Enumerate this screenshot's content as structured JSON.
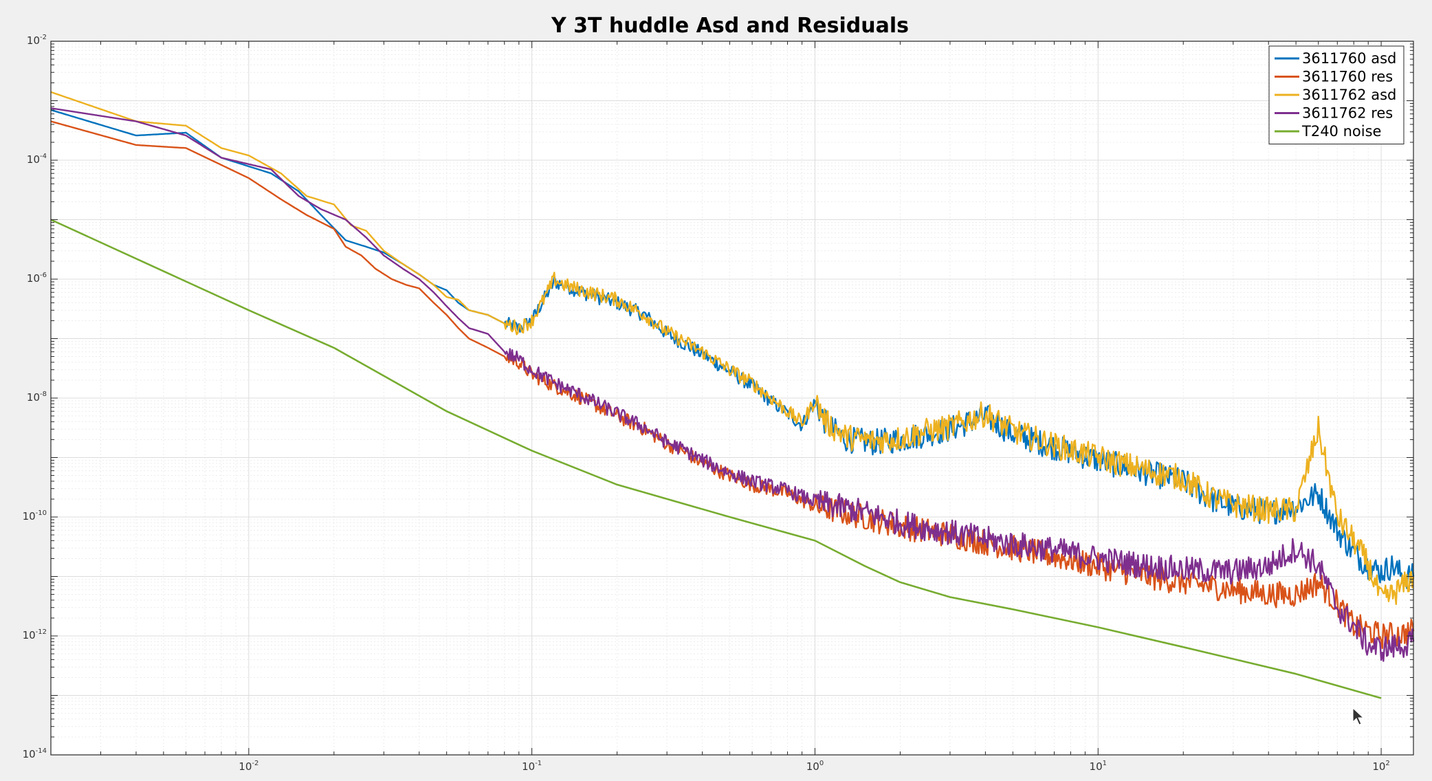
{
  "chart_data": {
    "type": "line",
    "title": "Y 3T huddle Asd and Residuals",
    "xlabel": "",
    "ylabel": "",
    "xscale": "log",
    "yscale": "log",
    "xlim": [
      0.002,
      130
    ],
    "ylim": [
      1e-14,
      0.01
    ],
    "grid": true,
    "minor_grid": true,
    "legend_position": "top-right",
    "x_ticks": [
      {
        "value": 0.01,
        "base": "10",
        "exp": "-2"
      },
      {
        "value": 0.1,
        "base": "10",
        "exp": "-1"
      },
      {
        "value": 1,
        "base": "10",
        "exp": "0"
      },
      {
        "value": 10,
        "base": "10",
        "exp": "1"
      },
      {
        "value": 100,
        "base": "10",
        "exp": "2"
      }
    ],
    "y_ticks": [
      {
        "value": 1e-14,
        "base": "10",
        "exp": "-14"
      },
      {
        "value": 1e-12,
        "base": "10",
        "exp": "-12"
      },
      {
        "value": 1e-10,
        "base": "10",
        "exp": "-10"
      },
      {
        "value": 1e-08,
        "base": "10",
        "exp": "-8"
      },
      {
        "value": 1e-06,
        "base": "10",
        "exp": "-6"
      },
      {
        "value": 0.0001,
        "base": "10",
        "exp": "-4"
      },
      {
        "value": 0.01,
        "base": "10",
        "exp": "-2"
      }
    ],
    "series": [
      {
        "name": "3611760  asd",
        "color": "#0072BD",
        "points": [
          [
            0.002,
            0.0007
          ],
          [
            0.004,
            0.00026
          ],
          [
            0.006,
            0.00029
          ],
          [
            0.008,
            0.00011
          ],
          [
            0.012,
            6e-05
          ],
          [
            0.015,
            3e-05
          ],
          [
            0.018,
            1.2e-05
          ],
          [
            0.022,
            4.5e-06
          ],
          [
            0.026,
            3.5e-06
          ],
          [
            0.03,
            2.8e-06
          ],
          [
            0.035,
            1.8e-06
          ],
          [
            0.04,
            1.2e-06
          ],
          [
            0.045,
            8e-07
          ],
          [
            0.05,
            6.5e-07
          ],
          [
            0.055,
            4e-07
          ],
          [
            0.06,
            3e-07
          ],
          [
            0.07,
            2.5e-07
          ],
          [
            0.08,
            1.8e-07
          ],
          [
            0.09,
            1.5e-07
          ],
          [
            0.1,
            2e-07
          ],
          [
            0.11,
            4.5e-07
          ],
          [
            0.12,
            9e-07
          ],
          [
            0.13,
            8e-07
          ],
          [
            0.15,
            6e-07
          ],
          [
            0.2,
            4e-07
          ],
          [
            0.25,
            2.5e-07
          ],
          [
            0.3,
            1.2e-07
          ],
          [
            0.4,
            5.5e-08
          ],
          [
            0.5,
            2.8e-08
          ],
          [
            0.6,
            1.6e-08
          ],
          [
            0.7,
            9e-09
          ],
          [
            0.8,
            5.5e-09
          ],
          [
            0.9,
            3.5e-09
          ],
          [
            1.0,
            8.5e-09
          ],
          [
            1.1,
            3.5e-09
          ],
          [
            1.3,
            2e-09
          ],
          [
            1.6,
            1.8e-09
          ],
          [
            2.0,
            2e-09
          ],
          [
            2.5,
            2.5e-09
          ],
          [
            3.0,
            3e-09
          ],
          [
            4.0,
            5e-09
          ],
          [
            5.0,
            2.5e-09
          ],
          [
            7.0,
            1.5e-09
          ],
          [
            10,
            9e-10
          ],
          [
            15,
            5.5e-10
          ],
          [
            20,
            4e-10
          ],
          [
            25,
            2e-10
          ],
          [
            30,
            1.5e-10
          ],
          [
            40,
            1.2e-10
          ],
          [
            50,
            1.5e-10
          ],
          [
            60,
            2.5e-10
          ],
          [
            70,
            6e-11
          ],
          [
            80,
            2.5e-11
          ],
          [
            90,
            1.5e-11
          ],
          [
            100,
            1.2e-11
          ],
          [
            110,
            1.5e-11
          ],
          [
            120,
            1e-11
          ],
          [
            130,
            1e-11
          ]
        ]
      },
      {
        "name": "3611760 res",
        "color": "#D95319",
        "points": [
          [
            0.002,
            0.00045
          ],
          [
            0.004,
            0.00018
          ],
          [
            0.006,
            0.00016
          ],
          [
            0.01,
            5e-05
          ],
          [
            0.013,
            2.2e-05
          ],
          [
            0.016,
            1.2e-05
          ],
          [
            0.02,
            7e-06
          ],
          [
            0.022,
            3.5e-06
          ],
          [
            0.025,
            2.5e-06
          ],
          [
            0.028,
            1.5e-06
          ],
          [
            0.032,
            1e-06
          ],
          [
            0.036,
            8e-07
          ],
          [
            0.04,
            7e-07
          ],
          [
            0.045,
            4e-07
          ],
          [
            0.05,
            2.5e-07
          ],
          [
            0.055,
            1.5e-07
          ],
          [
            0.06,
            1e-07
          ],
          [
            0.07,
            7e-08
          ],
          [
            0.08,
            5e-08
          ],
          [
            0.09,
            4e-08
          ],
          [
            0.1,
            2.5e-08
          ],
          [
            0.12,
            1.6e-08
          ],
          [
            0.15,
            1e-08
          ],
          [
            0.2,
            5e-09
          ],
          [
            0.25,
            3e-09
          ],
          [
            0.3,
            1.7e-09
          ],
          [
            0.35,
            1.2e-09
          ],
          [
            0.4,
            8e-10
          ],
          [
            0.5,
            5e-10
          ],
          [
            0.6,
            3.5e-10
          ],
          [
            0.8,
            2.5e-10
          ],
          [
            1.0,
            1.5e-10
          ],
          [
            1.5,
            1e-10
          ],
          [
            2.0,
            7e-11
          ],
          [
            3.0,
            5e-11
          ],
          [
            5.0,
            3e-11
          ],
          [
            7.0,
            2.2e-11
          ],
          [
            10,
            1.5e-11
          ],
          [
            15,
            1e-11
          ],
          [
            20,
            8e-12
          ],
          [
            30,
            6e-12
          ],
          [
            40,
            5e-12
          ],
          [
            50,
            5e-12
          ],
          [
            60,
            8e-12
          ],
          [
            70,
            3.5e-12
          ],
          [
            80,
            1.5e-12
          ],
          [
            100,
            1e-12
          ],
          [
            120,
            1.1e-12
          ],
          [
            130,
            1.2e-12
          ]
        ]
      },
      {
        "name": "3611762 asd",
        "color": "#EDB120",
        "points": [
          [
            0.002,
            0.0014
          ],
          [
            0.004,
            0.00045
          ],
          [
            0.006,
            0.00038
          ],
          [
            0.008,
            0.00016
          ],
          [
            0.01,
            0.00012
          ],
          [
            0.013,
            6e-05
          ],
          [
            0.016,
            2.5e-05
          ],
          [
            0.02,
            1.8e-05
          ],
          [
            0.023,
            8e-06
          ],
          [
            0.026,
            6.5e-06
          ],
          [
            0.03,
            3e-06
          ],
          [
            0.035,
            1.8e-06
          ],
          [
            0.04,
            1.2e-06
          ],
          [
            0.045,
            8e-07
          ],
          [
            0.05,
            5e-07
          ],
          [
            0.055,
            4.5e-07
          ],
          [
            0.06,
            3e-07
          ],
          [
            0.07,
            2.5e-07
          ],
          [
            0.08,
            1.8e-07
          ],
          [
            0.09,
            1.5e-07
          ],
          [
            0.1,
            2e-07
          ],
          [
            0.11,
            4.5e-07
          ],
          [
            0.12,
            1e-06
          ],
          [
            0.13,
            8e-07
          ],
          [
            0.15,
            6.5e-07
          ],
          [
            0.2,
            4.5e-07
          ],
          [
            0.25,
            2.5e-07
          ],
          [
            0.3,
            1.3e-07
          ],
          [
            0.4,
            6e-08
          ],
          [
            0.5,
            3e-08
          ],
          [
            0.6,
            1.8e-08
          ],
          [
            0.7,
            1e-08
          ],
          [
            0.8,
            6e-09
          ],
          [
            0.9,
            3.8e-09
          ],
          [
            1.0,
            9e-09
          ],
          [
            1.1,
            3.8e-09
          ],
          [
            1.3,
            2.2e-09
          ],
          [
            1.6,
            1.9e-09
          ],
          [
            2.0,
            2.1e-09
          ],
          [
            2.5,
            2.8e-09
          ],
          [
            3.0,
            3.2e-09
          ],
          [
            4.0,
            5.5e-09
          ],
          [
            5.0,
            2.8e-09
          ],
          [
            7.0,
            1.6e-09
          ],
          [
            10,
            1e-09
          ],
          [
            15,
            6e-10
          ],
          [
            20,
            4.5e-10
          ],
          [
            25,
            2.2e-10
          ],
          [
            30,
            1.6e-10
          ],
          [
            40,
            1.3e-10
          ],
          [
            50,
            1.3e-10
          ],
          [
            60,
            3e-09
          ],
          [
            70,
            1e-10
          ],
          [
            80,
            4e-11
          ],
          [
            90,
            1.6e-11
          ],
          [
            100,
            4e-12
          ],
          [
            110,
            5e-12
          ],
          [
            120,
            7e-12
          ],
          [
            130,
            1e-11
          ]
        ]
      },
      {
        "name": "3611762 res",
        "color": "#7E2F8E",
        "points": [
          [
            0.002,
            0.00075
          ],
          [
            0.004,
            0.00045
          ],
          [
            0.006,
            0.00026
          ],
          [
            0.008,
            0.00011
          ],
          [
            0.012,
            7e-05
          ],
          [
            0.015,
            2.5e-05
          ],
          [
            0.018,
            1.5e-05
          ],
          [
            0.022,
            1e-05
          ],
          [
            0.026,
            5e-06
          ],
          [
            0.03,
            2.5e-06
          ],
          [
            0.035,
            1.5e-06
          ],
          [
            0.04,
            1e-06
          ],
          [
            0.045,
            6e-07
          ],
          [
            0.05,
            3.5e-07
          ],
          [
            0.055,
            2.2e-07
          ],
          [
            0.06,
            1.5e-07
          ],
          [
            0.07,
            1.2e-07
          ],
          [
            0.08,
            6e-08
          ],
          [
            0.09,
            4.5e-08
          ],
          [
            0.1,
            3e-08
          ],
          [
            0.12,
            1.8e-08
          ],
          [
            0.15,
            1.1e-08
          ],
          [
            0.2,
            5.5e-09
          ],
          [
            0.25,
            3.2e-09
          ],
          [
            0.3,
            1.8e-09
          ],
          [
            0.35,
            1.3e-09
          ],
          [
            0.4,
            9e-10
          ],
          [
            0.5,
            5.5e-10
          ],
          [
            0.6,
            4e-10
          ],
          [
            0.8,
            2.8e-10
          ],
          [
            1.0,
            1.8e-10
          ],
          [
            1.5,
            1.2e-10
          ],
          [
            2.0,
            8e-11
          ],
          [
            3.0,
            5.5e-11
          ],
          [
            5.0,
            3.5e-11
          ],
          [
            7.0,
            2.8e-11
          ],
          [
            10,
            2e-11
          ],
          [
            15,
            1.5e-11
          ],
          [
            20,
            1.3e-11
          ],
          [
            30,
            1.2e-11
          ],
          [
            40,
            1.5e-11
          ],
          [
            50,
            3e-11
          ],
          [
            60,
            1.5e-11
          ],
          [
            70,
            3e-12
          ],
          [
            80,
            1.5e-12
          ],
          [
            90,
            7e-13
          ],
          [
            100,
            6e-13
          ],
          [
            120,
            7e-13
          ],
          [
            130,
            8e-13
          ]
        ]
      },
      {
        "name": "T240 noise",
        "color": "#77AC30",
        "points": [
          [
            0.002,
            1e-05
          ],
          [
            0.01,
            3e-07
          ],
          [
            0.02,
            7e-08
          ],
          [
            0.05,
            6e-09
          ],
          [
            0.1,
            1.3e-09
          ],
          [
            0.2,
            3.5e-10
          ],
          [
            0.5,
            1e-10
          ],
          [
            1.0,
            4e-11
          ],
          [
            1.5,
            1.5e-11
          ],
          [
            2.0,
            8e-12
          ],
          [
            3.0,
            4.5e-12
          ],
          [
            5.0,
            2.8e-12
          ],
          [
            10,
            1.4e-12
          ],
          [
            20,
            6.5e-13
          ],
          [
            50,
            2.3e-13
          ],
          [
            100,
            9e-14
          ]
        ]
      }
    ]
  }
}
